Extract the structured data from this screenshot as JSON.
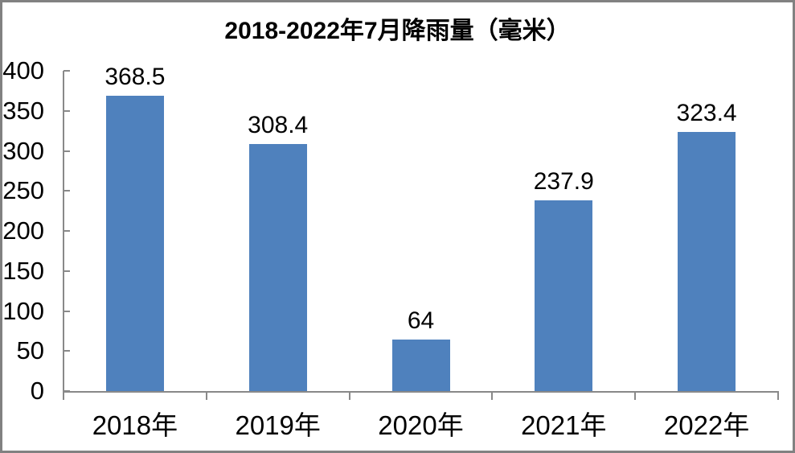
{
  "chart_data": {
    "type": "bar",
    "title": "2018-2022年7月降雨量（毫米）",
    "categories": [
      "2018年",
      "2019年",
      "2020年",
      "2021年",
      "2022年"
    ],
    "values": [
      368.5,
      308.4,
      64,
      237.9,
      323.4
    ],
    "data_labels": [
      "368.5",
      "308.4",
      "64",
      "237.9",
      "323.4"
    ],
    "xlabel": "",
    "ylabel": "",
    "ylim": [
      0,
      400
    ],
    "yticks": [
      0,
      50,
      100,
      150,
      200,
      250,
      300,
      350,
      400
    ],
    "grid": false,
    "legend": "none",
    "bar_color": "#4F81BD",
    "axis_color": "#898989",
    "text_color": "#000000",
    "background_color": "#FFFFFF",
    "frame_border_color": "#818181"
  }
}
